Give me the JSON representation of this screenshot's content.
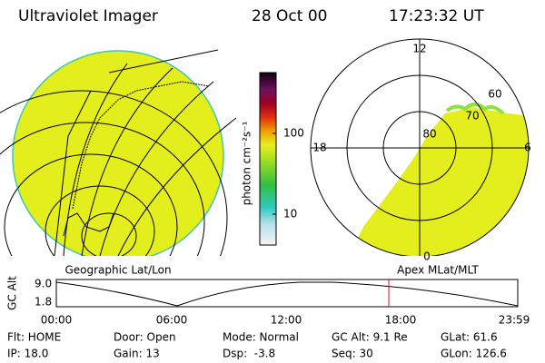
{
  "header": {
    "title": "Ultraviolet Imager",
    "date": "28 Oct 00",
    "time": "17:23:32 UT"
  },
  "colorbar": {
    "unit_label": "photon cm⁻²s⁻¹",
    "labels": [
      "100",
      "10"
    ]
  },
  "polar_plot": {
    "mlt_labels": [
      "12",
      "18",
      "6",
      "0"
    ],
    "mlat_labels": [
      "60",
      "70",
      "80"
    ]
  },
  "captions": {
    "left": "Geographic Lat/Lon",
    "right": "Apex MLat/MLT"
  },
  "altitude_plot": {
    "axis_label": "GC Alt",
    "y_labels": [
      "9.0",
      "1.8"
    ],
    "time_labels": [
      "00:00",
      "06:00",
      "12:00",
      "18:00",
      "23:59"
    ]
  },
  "info": {
    "rows": [
      [
        "Flt: HOME",
        "Door: Open",
        "Mode: Normal",
        "GC Alt: 9.1 Re",
        "GLat: 61.6"
      ],
      [
        "IP: 18.0",
        "Gain: 13",
        "Dsp:  -3.8",
        "Seq: 30",
        "GLon: 126.6"
      ]
    ]
  }
}
